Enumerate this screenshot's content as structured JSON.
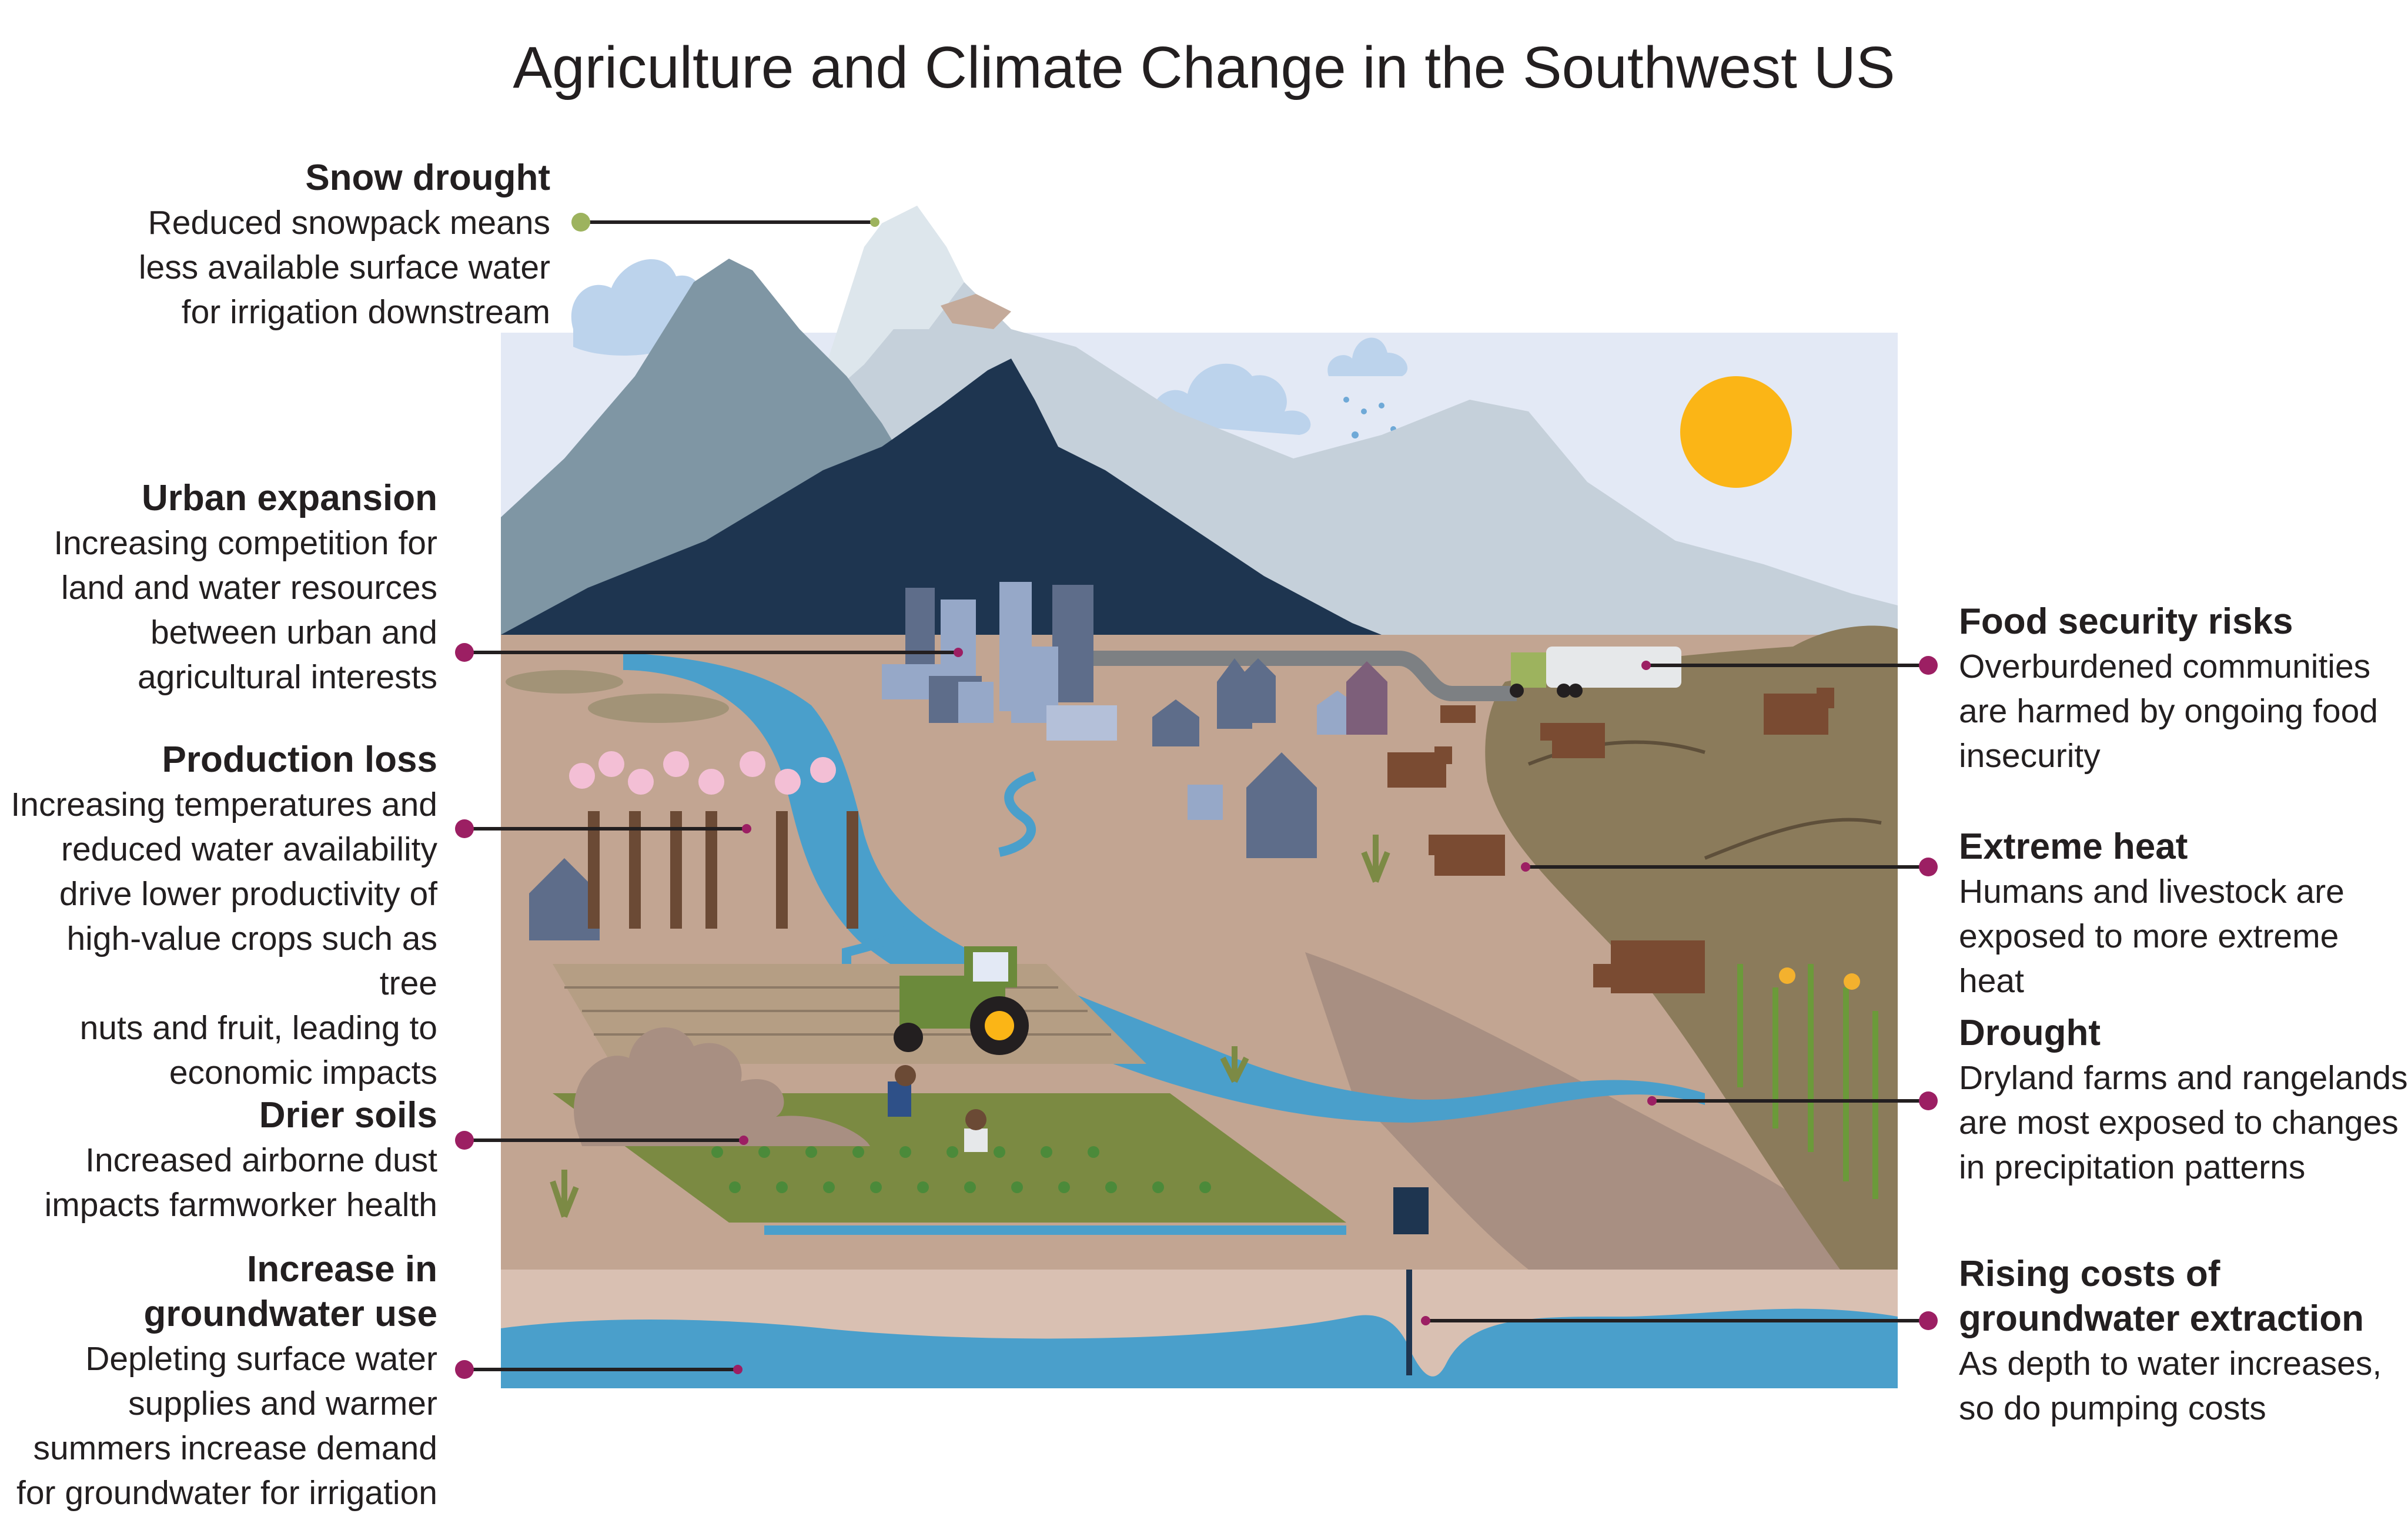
{
  "title": "Agriculture and Climate Change in the Southwest US",
  "callouts": {
    "snow_drought": {
      "heading": "Snow drought",
      "body": "Reduced snowpack means\nless available surface water\nfor irrigation downstream"
    },
    "urban_expansion": {
      "heading": "Urban expansion",
      "body": "Increasing competition for\nland and water resources\nbetween urban and\nagricultural interests"
    },
    "production_loss": {
      "heading": "Production loss",
      "body": "Increasing temperatures and\nreduced water availability\ndrive lower productivity of\nhigh-value crops such as tree\nnuts and fruit, leading to\neconomic impacts"
    },
    "drier_soils": {
      "heading": "Drier soils",
      "body": "Increased airborne dust\nimpacts farmworker health"
    },
    "groundwater_use": {
      "heading": "Increase in\ngroundwater use",
      "body": "Depleting surface water\nsupplies and warmer\nsummers increase demand\nfor groundwater for irrigation"
    },
    "food_security": {
      "heading": "Food security risks",
      "body": "Overburdened communities\nare harmed by ongoing food\ninsecurity"
    },
    "extreme_heat": {
      "heading": "Extreme heat",
      "body": "Humans and livestock are\nexposed to more extreme heat"
    },
    "drought": {
      "heading": "Drought",
      "body": "Dryland farms and rangelands\nare most exposed to changes\nin precipitation patterns"
    },
    "groundwater_costs": {
      "heading": "Rising costs of\ngroundwater extraction",
      "body": "As depth to water increases,\nso do pumping costs"
    }
  },
  "colors": {
    "sky": "#e3e9f5",
    "mountain_far": "#c5d0da",
    "mountain_mid": "#7f96a4",
    "mountain_dark": "#1e3550",
    "snow": "#dde6ec",
    "ground": "#c2a592",
    "ground_dark": "#a88f82",
    "hill": "#8b7b5b",
    "river": "#4a9fcb",
    "sun": "#fbb516",
    "subsoil": "#d9c0b2",
    "aquifer": "#4a9fcb",
    "marker_magenta": "#9c1f63",
    "marker_green": "#9db35e",
    "house": "#5e6d8a",
    "cattle": "#7a4b32",
    "field_green": "#7b8a42"
  }
}
